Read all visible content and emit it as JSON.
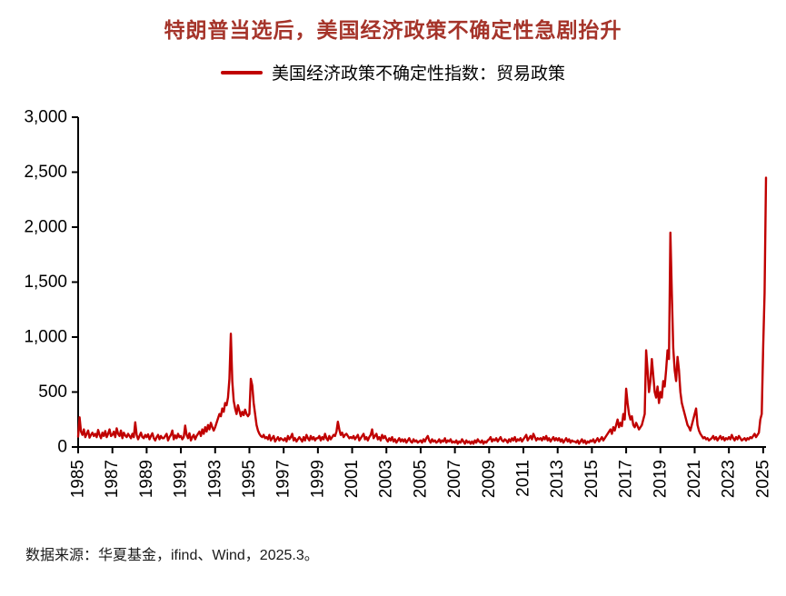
{
  "title": "特朗普当选后，美国经济政策不确定性急剧抬升",
  "legend": {
    "label": "美国经济政策不确定性指数：贸易政策",
    "color": "#C00000"
  },
  "source_note": "数据来源：华夏基金，ifind、Wind，2025.3。",
  "colors": {
    "title": "#A5342A",
    "line": "#C00000",
    "axis": "#000000"
  },
  "chart_data": {
    "type": "line",
    "title": "特朗普当选后，美国经济政策不确定性急剧抬升",
    "xlabel": "",
    "ylabel": "",
    "ylim": [
      0,
      3000
    ],
    "yticks": [
      0,
      500,
      1000,
      1500,
      2000,
      2500,
      3000
    ],
    "x_start": "1985-01",
    "frequency": "monthly",
    "x_tick_years": [
      1985,
      1987,
      1989,
      1991,
      1993,
      1995,
      1997,
      1999,
      2001,
      2003,
      2005,
      2007,
      2009,
      2011,
      2013,
      2015,
      2017,
      2019,
      2021,
      2023,
      2025
    ],
    "grid": false,
    "legend_position": "top",
    "series": [
      {
        "name": "美国经济政策不确定性指数：贸易政策",
        "values": [
          95,
          270,
          140,
          110,
          160,
          90,
          120,
          150,
          85,
          110,
          130,
          100,
          120,
          90,
          155,
          110,
          80,
          130,
          100,
          145,
          90,
          120,
          160,
          100,
          110,
          140,
          90,
          170,
          120,
          100,
          150,
          80,
          130,
          105,
          90,
          120,
          100,
          80,
          120,
          90,
          225,
          110,
          70,
          100,
          130,
          90,
          80,
          110,
          90,
          115,
          70,
          100,
          125,
          80,
          60,
          90,
          110,
          70,
          100,
          80,
          80,
          100,
          120,
          60,
          90,
          110,
          150,
          70,
          105,
          80,
          120,
          90,
          100,
          70,
          90,
          195,
          110,
          80,
          125,
          60,
          90,
          110,
          70,
          100,
          120,
          140,
          100,
          160,
          120,
          180,
          140,
          200,
          160,
          220,
          180,
          150,
          180,
          220,
          260,
          300,
          280,
          350,
          320,
          400,
          380,
          450,
          620,
          1030,
          600,
          420,
          350,
          300,
          380,
          330,
          280,
          320,
          290,
          340,
          300,
          280,
          300,
          620,
          560,
          400,
          300,
          200,
          150,
          120,
          100,
          90,
          110,
          80,
          90,
          70,
          110,
          60,
          80,
          100,
          50,
          70,
          90,
          60,
          80,
          70,
          60,
          80,
          50,
          100,
          70,
          90,
          120,
          60,
          80,
          50,
          70,
          90,
          70,
          50,
          90,
          60,
          110,
          80,
          60,
          100,
          70,
          90,
          60,
          80,
          80,
          100,
          60,
          90,
          70,
          120,
          80,
          60,
          100,
          70,
          90,
          110,
          100,
          140,
          230,
          160,
          110,
          130,
          90,
          110,
          120,
          100,
          80,
          90,
          80,
          100,
          70,
          90,
          110,
          60,
          80,
          100,
          120,
          70,
          90,
          60,
          90,
          110,
          160,
          80,
          100,
          120,
          70,
          90,
          60,
          110,
          80,
          100,
          70,
          50,
          80,
          60,
          90,
          50,
          70,
          40,
          60,
          80,
          50,
          70,
          50,
          70,
          40,
          60,
          80,
          50,
          40,
          70,
          50,
          60,
          40,
          50,
          60,
          40,
          70,
          50,
          80,
          100,
          60,
          40,
          70,
          50,
          60,
          40,
          50,
          70,
          40,
          60,
          50,
          80,
          40,
          60,
          50,
          70,
          40,
          50,
          40,
          60,
          30,
          50,
          40,
          70,
          50,
          30,
          60,
          40,
          50,
          30,
          50,
          30,
          60,
          40,
          70,
          50,
          40,
          60,
          30,
          50,
          40,
          60,
          70,
          90,
          50,
          70,
          60,
          80,
          50,
          70,
          90,
          60,
          50,
          70,
          60,
          40,
          70,
          50,
          80,
          60,
          90,
          50,
          70,
          60,
          80,
          50,
          70,
          90,
          110,
          60,
          80,
          100,
          70,
          120,
          90,
          60,
          80,
          70,
          80,
          60,
          90,
          70,
          100,
          60,
          80,
          50,
          70,
          90,
          60,
          80,
          60,
          80,
          50,
          70,
          40,
          60,
          80,
          50,
          70,
          40,
          60,
          50,
          50,
          40,
          60,
          30,
          50,
          70,
          40,
          60,
          30,
          50,
          40,
          60,
          50,
          70,
          40,
          60,
          80,
          50,
          70,
          90,
          60,
          80,
          100,
          120,
          140,
          160,
          120,
          180,
          150,
          200,
          250,
          180,
          220,
          190,
          300,
          250,
          530,
          400,
          300,
          250,
          280,
          200,
          180,
          220,
          190,
          160,
          180,
          200,
          250,
          300,
          880,
          700,
          500,
          600,
          800,
          650,
          500,
          450,
          550,
          400,
          500,
          450,
          600,
          550,
          700,
          880,
          800,
          1950,
          1400,
          900,
          700,
          600,
          820,
          700,
          500,
          400,
          350,
          300,
          250,
          200,
          180,
          150,
          200,
          250,
          300,
          350,
          200,
          150,
          120,
          100,
          80,
          90,
          70,
          80,
          60,
          70,
          80,
          100,
          70,
          90,
          60,
          80,
          100,
          70,
          90,
          60,
          80,
          70,
          90,
          70,
          110,
          80,
          60,
          90,
          70,
          100,
          80,
          60,
          70,
          80,
          60,
          80,
          70,
          90,
          80,
          100,
          120,
          90,
          110,
          130,
          250,
          300,
          900,
          1400,
          2450
        ]
      }
    ]
  }
}
